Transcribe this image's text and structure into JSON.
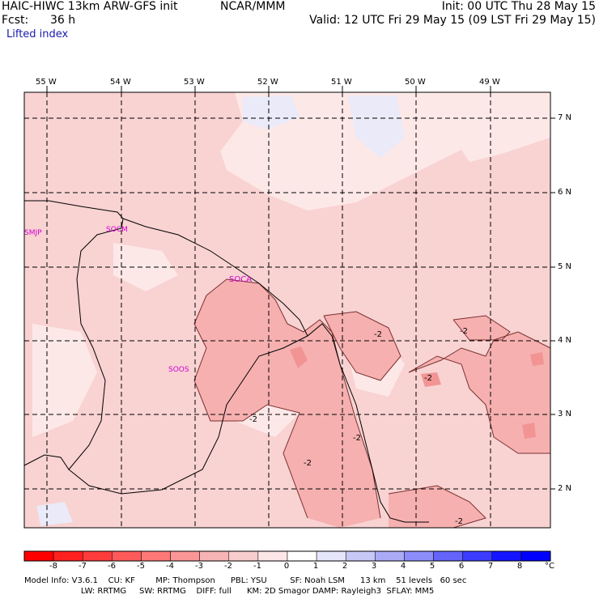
{
  "header": {
    "model": "HAIC-HIWC 13km ARW-GFS init",
    "org": "NCAR/MMM",
    "init": "Init: 00 UTC Thu 28 May 15",
    "fcst_label": "Fcst:",
    "fcst_value": "36 h",
    "valid": "Valid: 12 UTC Fri 29 May 15 (09 LST Fri 29 May 15)",
    "field": "Lifted index"
  },
  "map": {
    "lon_labels": [
      "55 W",
      "54 W",
      "53 W",
      "52 W",
      "51 W",
      "50 W",
      "49 W"
    ],
    "lat_labels": [
      "7 N",
      "6 N",
      "5 N",
      "4 N",
      "3 N",
      "2 N"
    ],
    "stations": [
      "SMJP",
      "SOCM",
      "SOCA",
      "SOOS"
    ],
    "contour_labels": [
      "-2",
      "-2",
      "-2",
      "-2",
      "-2",
      "-2",
      "-2"
    ]
  },
  "colorbar": {
    "labels": [
      "-8",
      "-7",
      "-6",
      "-5",
      "-4",
      "-3",
      "-2",
      "-1",
      "0",
      "1",
      "2",
      "3",
      "4",
      "5",
      "6",
      "7",
      "8"
    ],
    "unit": "°C",
    "colors": [
      "#ff0000",
      "#ff2020",
      "#ff3c3c",
      "#ff5a5a",
      "#ff7878",
      "#fb9696",
      "#f6b4b4",
      "#f8cdcd",
      "#fde6e6",
      "#ffffff",
      "#e6e6fb",
      "#c8c8f6",
      "#aaaaf6",
      "#8c8cfa",
      "#6464fa",
      "#3c3cff",
      "#1414ff",
      "#0000ff"
    ]
  },
  "footer": {
    "line1": "Model Info: V3.6.1    CU: KF        MP: Thompson      PBL: YSU         SF: Noah LSM      13 km    51 levels   60 sec",
    "line2": "                      LW: RRTMG     SW: RRTMG    DIFF: full      KM: 2D Smagor DAMP: Rayleigh3  SFLAY: MM5"
  }
}
